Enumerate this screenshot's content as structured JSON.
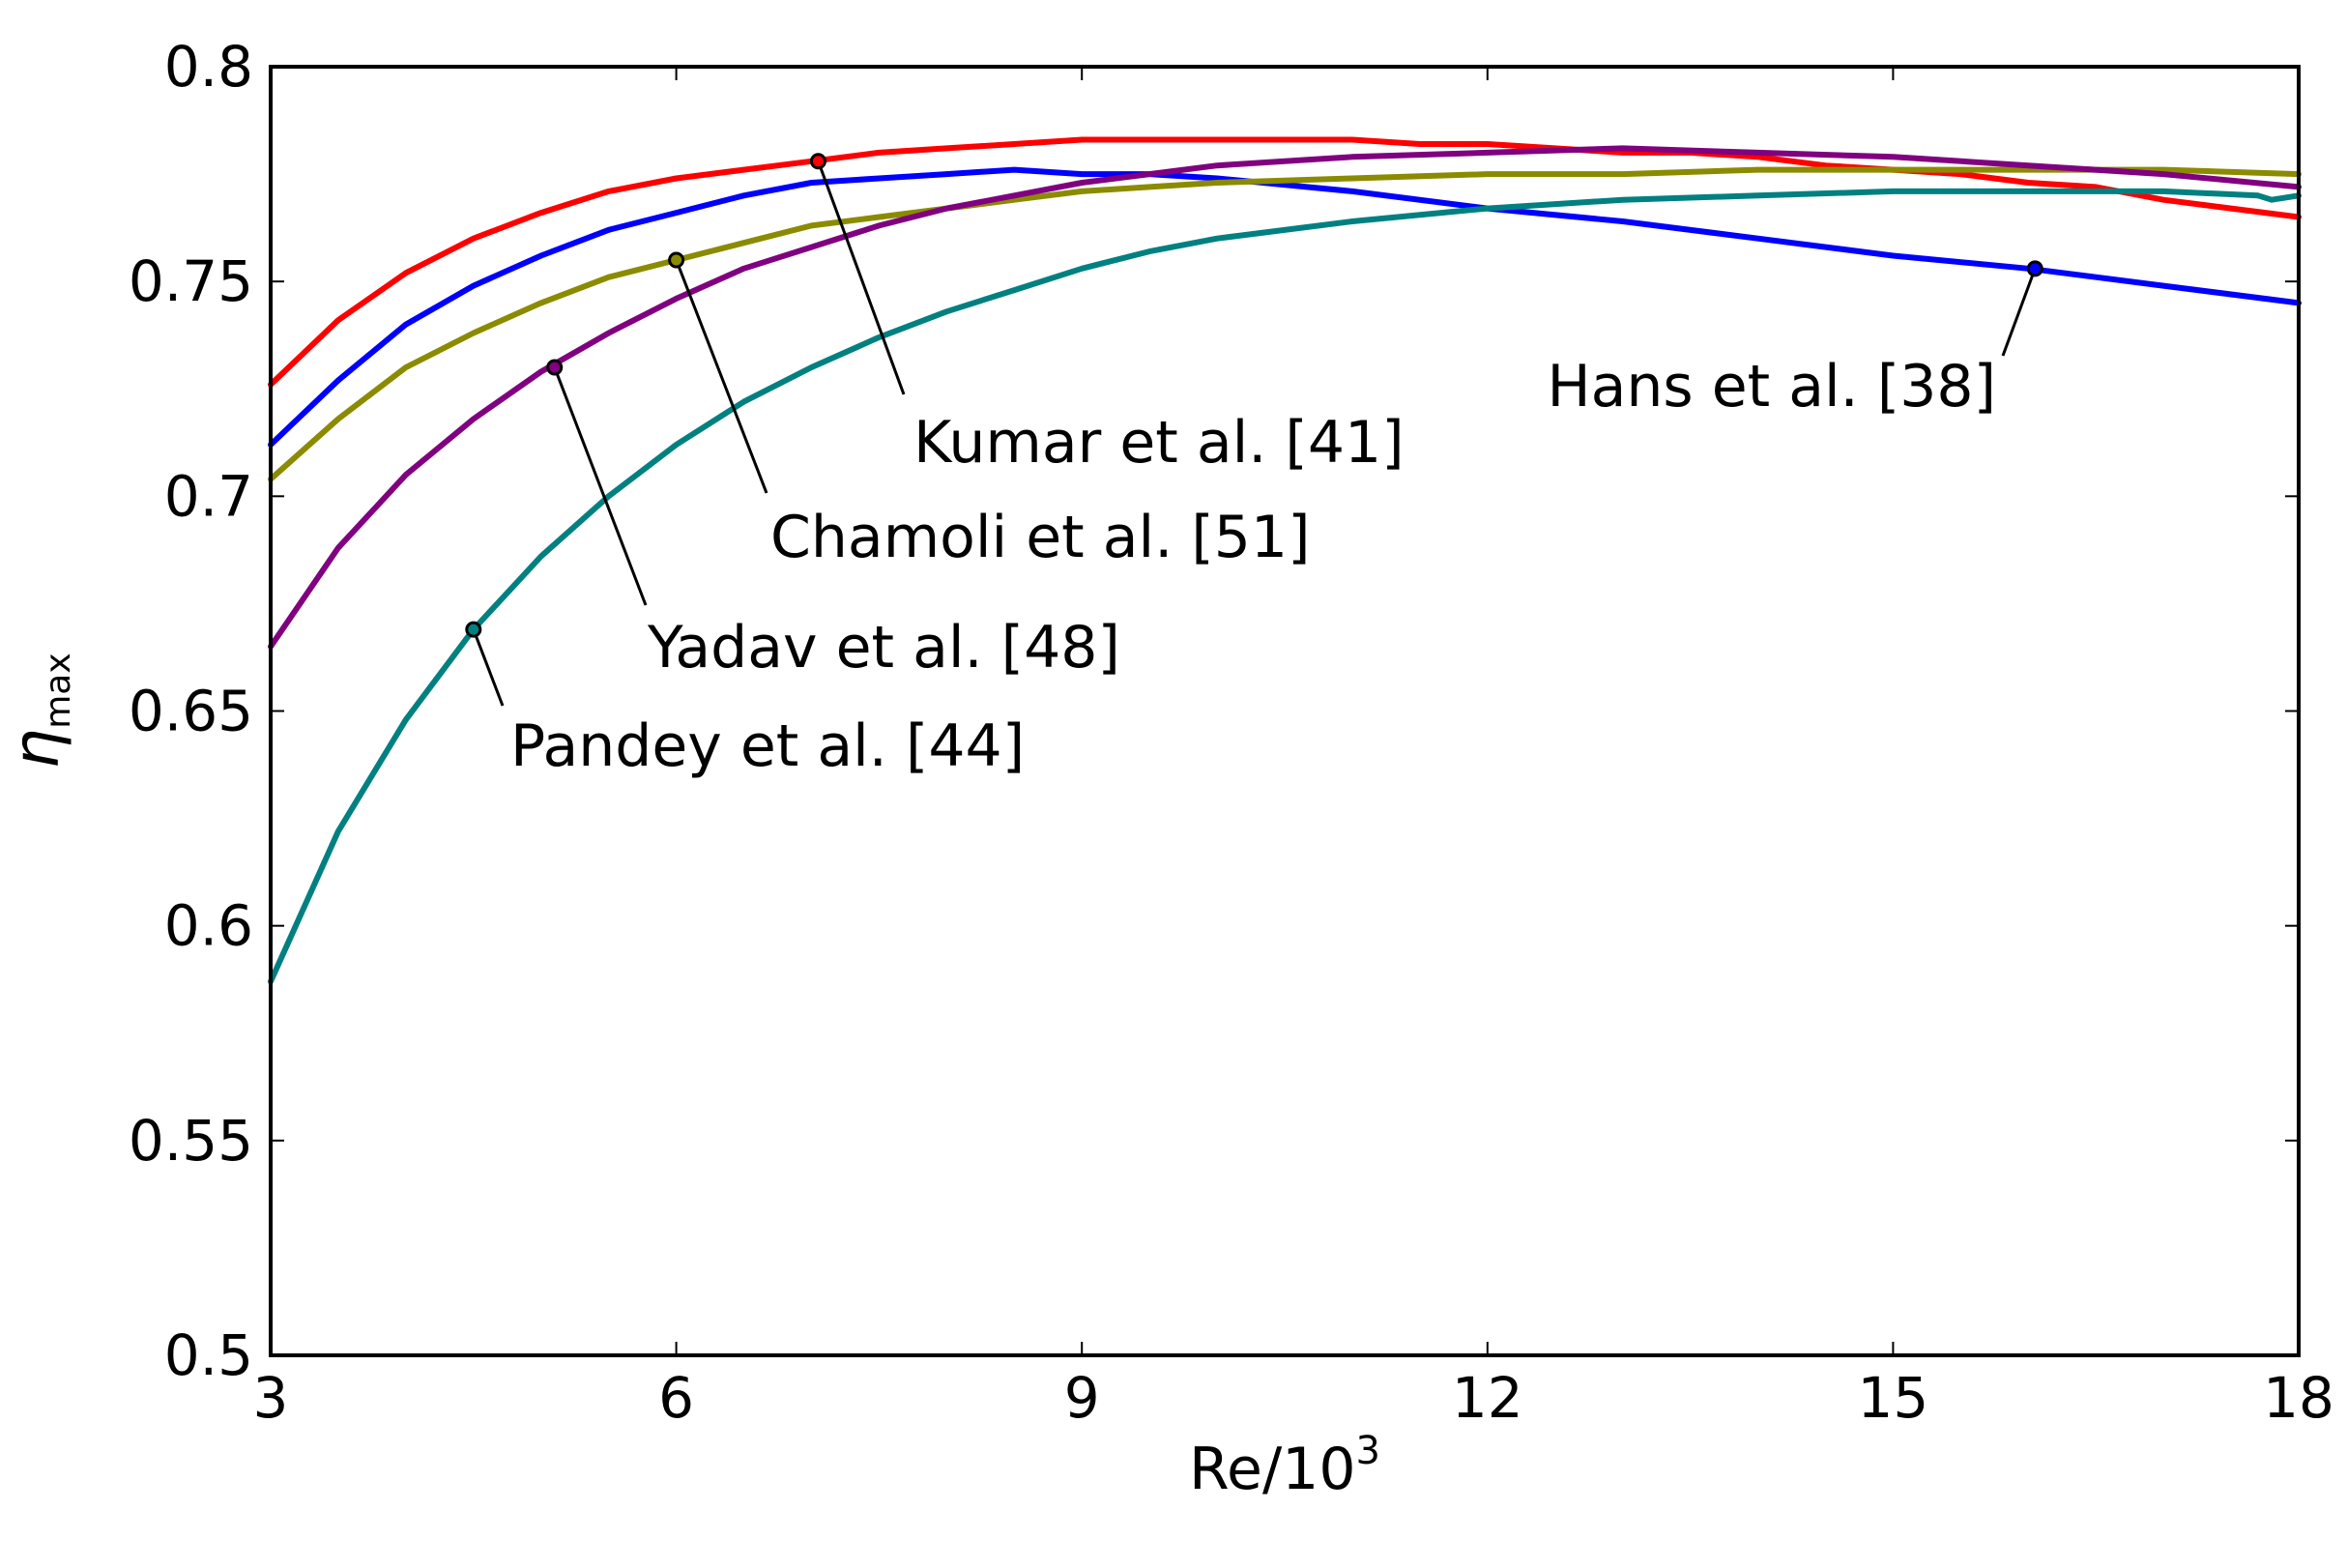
{
  "chart_data": {
    "type": "line",
    "title": "",
    "xlabel": "Re/10",
    "xlabel_sup": "3",
    "ylabel": "η",
    "ylabel_sub": "max",
    "xlim": [
      3,
      18
    ],
    "ylim": [
      0.5,
      0.8
    ],
    "xticks": [
      3,
      6,
      9,
      12,
      15,
      18
    ],
    "xtick_labels": [
      "3",
      "6",
      "9",
      "12",
      "15",
      "18"
    ],
    "yticks": [
      0.5,
      0.55,
      0.6,
      0.65,
      0.7,
      0.75,
      0.8
    ],
    "ytick_labels": [
      "0.5",
      "0.55",
      "0.6",
      "0.65",
      "0.7",
      "0.75",
      "0.8"
    ],
    "grid": false,
    "legend": "none (inline annotations)",
    "series": [
      {
        "name": "Kumar et al. [41]",
        "color": "#ff0000",
        "x": [
          3,
          3.5,
          4,
          4.5,
          5,
          5.5,
          6,
          6.5,
          7,
          7.5,
          8,
          8.5,
          9,
          9.5,
          10,
          10.5,
          11,
          11.5,
          12,
          12.5,
          13,
          13.5,
          14,
          14.5,
          15,
          15.5,
          16,
          16.5,
          17,
          17.5,
          18
        ],
        "values": [
          0.726,
          0.741,
          0.752,
          0.76,
          0.766,
          0.771,
          0.774,
          0.776,
          0.778,
          0.78,
          0.781,
          0.782,
          0.783,
          0.783,
          0.783,
          0.783,
          0.783,
          0.782,
          0.782,
          0.781,
          0.78,
          0.78,
          0.779,
          0.777,
          0.776,
          0.775,
          0.773,
          0.772,
          0.769,
          0.767,
          0.765
        ],
        "marker": {
          "x": 7.05,
          "y": 0.778
        },
        "label_text": "Kumar et al. [41]"
      },
      {
        "name": "Hans et al. [38]",
        "color": "#0000ff",
        "x": [
          3,
          3.5,
          4,
          4.5,
          5,
          5.5,
          6,
          6.5,
          7,
          7.5,
          8,
          8.5,
          9,
          9.5,
          10,
          11,
          12,
          13,
          14,
          15,
          16,
          17,
          18
        ],
        "values": [
          0.712,
          0.727,
          0.74,
          0.749,
          0.756,
          0.762,
          0.766,
          0.77,
          0.773,
          0.774,
          0.775,
          0.776,
          0.775,
          0.775,
          0.774,
          0.771,
          0.767,
          0.764,
          0.76,
          0.756,
          0.753,
          0.749,
          0.745
        ],
        "marker": {
          "x": 16.05,
          "y": 0.753
        },
        "label_text": "Hans et al. [38]"
      },
      {
        "name": "Chamoli et al. [51]",
        "color": "#8b8b00",
        "x": [
          3,
          3.5,
          4,
          4.5,
          5,
          5.5,
          6,
          6.5,
          7,
          7.5,
          8,
          8.5,
          9,
          9.5,
          10,
          11,
          12,
          13,
          14,
          15,
          16,
          17,
          18
        ],
        "values": [
          0.704,
          0.718,
          0.73,
          0.738,
          0.745,
          0.751,
          0.755,
          0.759,
          0.763,
          0.765,
          0.767,
          0.769,
          0.771,
          0.772,
          0.773,
          0.774,
          0.775,
          0.775,
          0.776,
          0.776,
          0.776,
          0.776,
          0.775
        ],
        "marker": {
          "x": 6.0,
          "y": 0.755
        },
        "label_text": "Chamoli et al. [51]"
      },
      {
        "name": "Yadav et al. [48]",
        "color": "#800080",
        "x": [
          3,
          3.5,
          4,
          4.5,
          5,
          5.5,
          6,
          6.5,
          7,
          7.5,
          8,
          8.5,
          9,
          9.5,
          10,
          11,
          12,
          13,
          14,
          15,
          16,
          17,
          18
        ],
        "values": [
          0.665,
          0.688,
          0.705,
          0.718,
          0.729,
          0.738,
          0.746,
          0.753,
          0.758,
          0.763,
          0.767,
          0.77,
          0.773,
          0.775,
          0.777,
          0.779,
          0.78,
          0.781,
          0.78,
          0.779,
          0.777,
          0.775,
          0.772
        ],
        "marker": {
          "x": 5.1,
          "y": 0.73
        },
        "label_text": "Yadav et al. [48]"
      },
      {
        "name": "Pandey et al. [44]",
        "color": "#008080",
        "x": [
          3,
          3.5,
          4,
          4.5,
          5,
          5.5,
          6,
          6.5,
          7,
          7.5,
          8,
          8.5,
          9,
          9.5,
          10,
          11,
          12,
          13,
          14,
          15,
          16,
          17,
          17.7,
          17.8,
          18
        ],
        "values": [
          0.587,
          0.622,
          0.648,
          0.669,
          0.686,
          0.7,
          0.712,
          0.722,
          0.73,
          0.737,
          0.743,
          0.748,
          0.753,
          0.757,
          0.76,
          0.764,
          0.767,
          0.769,
          0.77,
          0.771,
          0.771,
          0.771,
          0.77,
          0.769,
          0.77
        ],
        "marker": {
          "x": 4.5,
          "y": 0.669
        },
        "label_text": "Pandey et al. [44]"
      }
    ],
    "annotations": [
      {
        "series": 0,
        "text": "Kumar et al. [41]"
      },
      {
        "series": 1,
        "text": "Hans et al. [38]"
      },
      {
        "series": 2,
        "text": "Chamoli et al. [51]"
      },
      {
        "series": 3,
        "text": "Yadav et al. [48]"
      },
      {
        "series": 4,
        "text": "Pandey et al. [44]"
      }
    ]
  }
}
